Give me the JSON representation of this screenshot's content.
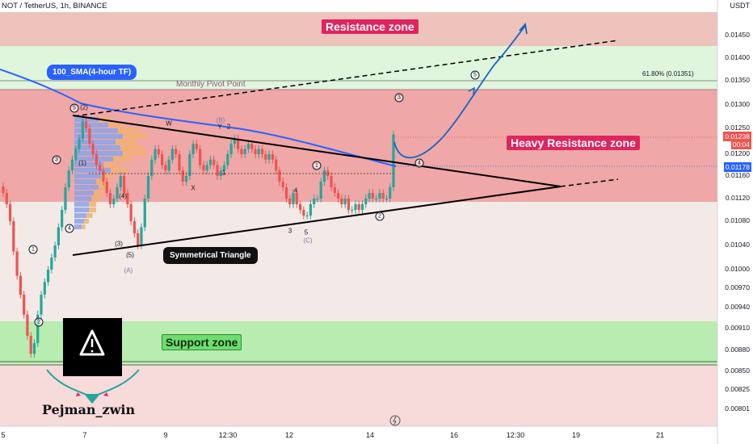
{
  "header": {
    "symbol_line": "NOT / TetherUS, 1h, BINANCE",
    "currency": "USDT"
  },
  "chart_data": {
    "type": "candlestick",
    "title": "NOT / TetherUS, 1h, BINANCE",
    "ylabel": "USDT",
    "ylim": [
      0.00785,
      0.01515
    ],
    "y_ticks": [
      "0.01450",
      "0.01400",
      "0.01350",
      "0.01300",
      "0.01250",
      "0.01200",
      "0.01160",
      "0.01120",
      "0.01080",
      "0.01040",
      "0.01000",
      "0.00970",
      "0.00940",
      "0.00910",
      "0.00880",
      "0.00850",
      "0.00825",
      "0.00801"
    ],
    "x_ticks": [
      "5",
      "7",
      "9",
      "12:30",
      "12",
      "14",
      "16",
      "12:30",
      "19",
      "21"
    ],
    "last_price": "0.01238",
    "countdown": "00:04",
    "sma_value": "0.01178",
    "close_series": [
      0.0113,
      0.0111,
      0.0108,
      0.0103,
      0.0099,
      0.0096,
      0.0093,
      0.009,
      0.00875,
      0.0089,
      0.0093,
      0.0096,
      0.0098,
      0.01,
      0.0102,
      0.0104,
      0.0107,
      0.011,
      0.0114,
      0.0117,
      0.0119,
      0.0121,
      0.0123,
      0.01265,
      0.0125,
      0.0122,
      0.012,
      0.0118,
      0.0117,
      0.0115,
      0.0113,
      0.0111,
      0.0112,
      0.0114,
      0.0116,
      0.0113,
      0.0111,
      0.0108,
      0.0106,
      0.0104,
      0.0107,
      0.0112,
      0.0116,
      0.0119,
      0.0121,
      0.012,
      0.0118,
      0.0117,
      0.0119,
      0.0121,
      0.012,
      0.0117,
      0.0115,
      0.0116,
      0.012,
      0.0122,
      0.0121,
      0.0118,
      0.0117,
      0.0118,
      0.0119,
      0.0118,
      0.0116,
      0.0117,
      0.0118,
      0.012,
      0.0122,
      0.0123,
      0.0121,
      0.012,
      0.0121,
      0.0122,
      0.0121,
      0.012,
      0.0121,
      0.012,
      0.0119,
      0.012,
      0.0119,
      0.0117,
      0.0115,
      0.0114,
      0.0112,
      0.0111,
      0.0113,
      0.0111,
      0.011,
      0.0109,
      0.0109,
      0.0111,
      0.0112,
      0.0112,
      0.0115,
      0.0117,
      0.0116,
      0.0114,
      0.0113,
      0.0112,
      0.0111,
      0.0112,
      0.011,
      0.011,
      0.0111,
      0.011,
      0.0111,
      0.0112,
      0.0113,
      0.0112,
      0.0112,
      0.0113,
      0.0112,
      0.0112,
      0.0114,
      0.01238
    ],
    "fib_label": "61.80% (0.01351)",
    "zones": {
      "resistance": "Resistance zone",
      "heavy_resistance": "Heavy Resistance zone",
      "support": "Support zone"
    },
    "annotations": {
      "sma": "100_SMA(4-hour TF)",
      "pivot": "Monthly Pivot Point",
      "triangle": "Symmetrical Triangle"
    },
    "wave_labels": [
      "1",
      "2",
      "3",
      "4",
      "5",
      "(2)",
      "(3)",
      "(4)",
      "(5)",
      "(A)",
      "(B)",
      "(C)",
      "W",
      "X",
      "Y"
    ]
  },
  "brand": {
    "name": "Pejman_zwin"
  },
  "colors": {
    "up": "#26a69a",
    "down": "#ef5350",
    "sma": "#2962ff",
    "heavy": "#e0245e",
    "support": "#6fdc6f",
    "forecast": "#1565c0"
  }
}
